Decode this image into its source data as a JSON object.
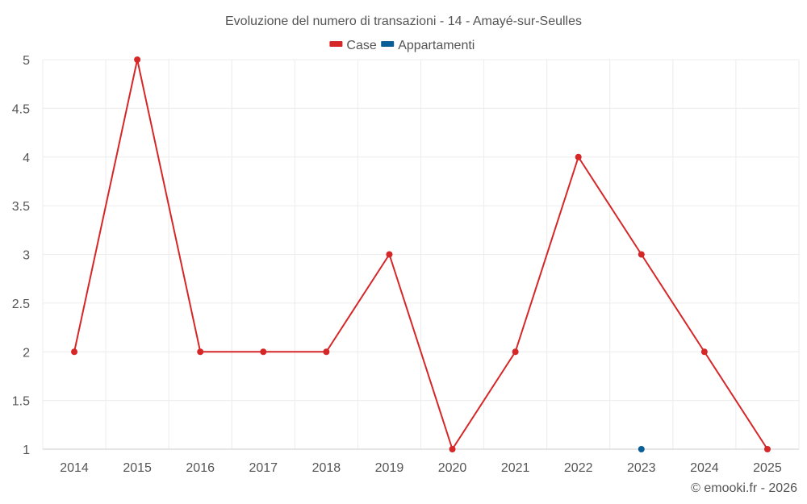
{
  "chart_data": {
    "type": "line",
    "title": "Evoluzione del numero di transazioni - 14 - Amayé-sur-Seulles",
    "categories": [
      "2014",
      "2015",
      "2016",
      "2017",
      "2018",
      "2019",
      "2020",
      "2021",
      "2022",
      "2023",
      "2024",
      "2025"
    ],
    "series": [
      {
        "name": "Case",
        "color": "#d62728",
        "values": [
          2,
          5,
          2,
          2,
          2,
          3,
          1,
          2,
          4,
          3,
          2,
          1
        ]
      },
      {
        "name": "Appartamenti",
        "color": "#0b5f97",
        "values": [
          null,
          null,
          null,
          null,
          null,
          null,
          null,
          null,
          null,
          1,
          null,
          null
        ]
      }
    ],
    "ylim": [
      1,
      5
    ],
    "yticks": [
      1,
      1.5,
      2,
      2.5,
      3,
      3.5,
      4,
      4.5,
      5
    ],
    "ytick_labels": [
      "1",
      "1.5",
      "2",
      "2.5",
      "3",
      "3.5",
      "4",
      "4.5",
      "5"
    ],
    "xlabel": "",
    "ylabel": "",
    "grid": true,
    "legend_position": "top-center"
  },
  "credit": "© emooki.fr - 2026"
}
